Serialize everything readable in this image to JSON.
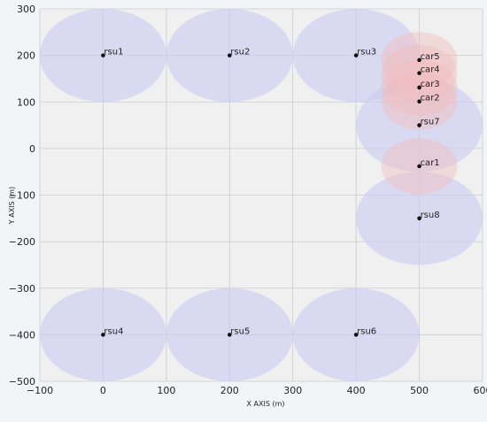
{
  "chart_data": {
    "type": "scatter",
    "title": "",
    "xlabel": "X AXIS (m)",
    "ylabel": "Y AXIS (m)",
    "xlim": [
      -100,
      600
    ],
    "ylim": [
      -500,
      300
    ],
    "grid": true,
    "x_ticks": [
      -100,
      0,
      100,
      200,
      300,
      400,
      500,
      600
    ],
    "y_ticks": [
      300,
      200,
      100,
      0,
      -100,
      -200,
      -300,
      -400,
      -500
    ],
    "series": [
      {
        "name": "rsu",
        "radius": 100,
        "points": [
          {
            "label": "rsu1",
            "x": 0,
            "y": 200
          },
          {
            "label": "rsu2",
            "x": 200,
            "y": 200
          },
          {
            "label": "rsu3",
            "x": 400,
            "y": 200
          },
          {
            "label": "rsu4",
            "x": 0,
            "y": -400
          },
          {
            "label": "rsu5",
            "x": 200,
            "y": -400
          },
          {
            "label": "rsu6",
            "x": 400,
            "y": -400
          },
          {
            "label": "rsu7",
            "x": 500,
            "y": 50
          },
          {
            "label": "rsu8",
            "x": 500,
            "y": -150
          }
        ]
      },
      {
        "name": "car",
        "radius": 60,
        "points": [
          {
            "label": "car1",
            "x": 500,
            "y": -38
          },
          {
            "label": "car2",
            "x": 500,
            "y": 101
          },
          {
            "label": "car3",
            "x": 500,
            "y": 131
          },
          {
            "label": "car4",
            "x": 500,
            "y": 162
          },
          {
            "label": "car5",
            "x": 500,
            "y": 190
          }
        ]
      }
    ],
    "colors": {
      "background": "#f2f4f7",
      "plot_background": "#f0f0f0",
      "grid": "#cbcbcb",
      "rsu_fill": "#c9c9f2",
      "car_fill": "#f2bdbd",
      "marker": "#111111"
    }
  }
}
